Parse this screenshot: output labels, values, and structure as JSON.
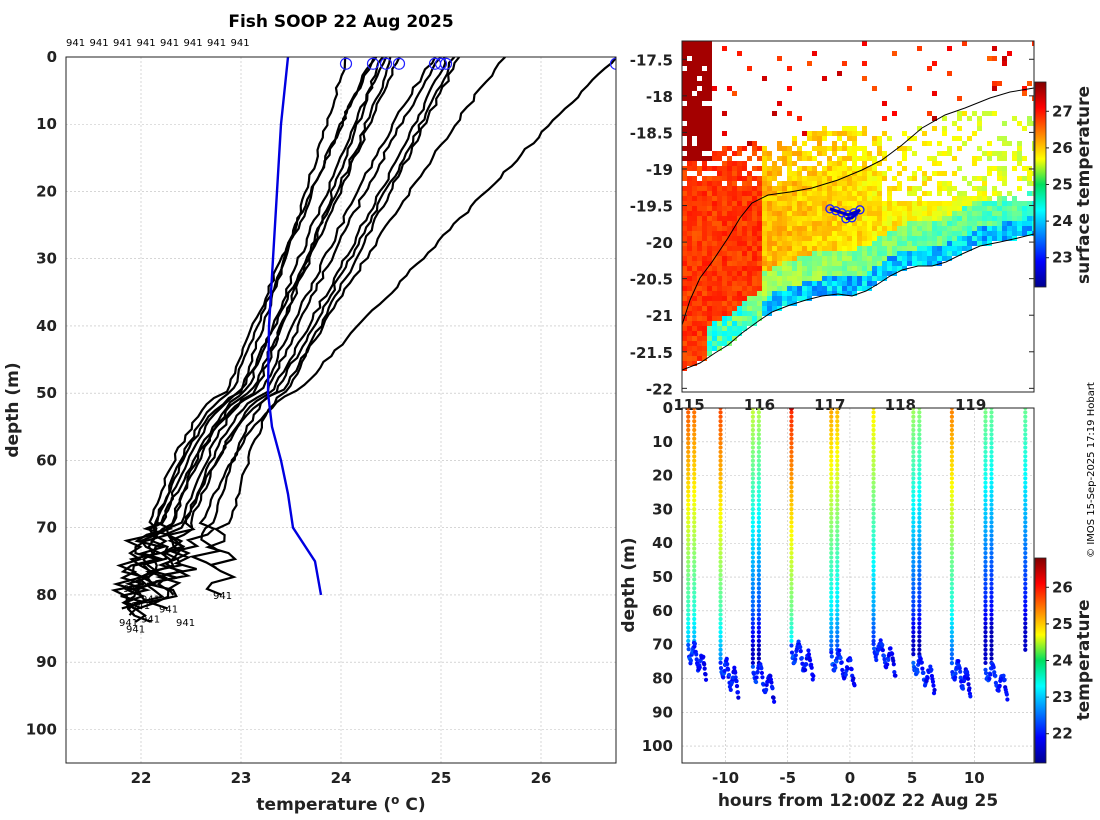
{
  "chart_data": [
    {
      "type": "line",
      "title": "Fish SOOP 22 Aug 2025",
      "xlabel": "temperature (",
      "xlabel_sup": "o",
      "xlabel_tail": " C)",
      "ylabel": "depth (m)",
      "xlim": [
        21.25,
        26.75
      ],
      "ylim": [
        105,
        0
      ],
      "xticks": [
        "22",
        "23",
        "24",
        "25",
        "26"
      ],
      "yticks": [
        "0",
        "10",
        "20",
        "30",
        "40",
        "50",
        "60",
        "70",
        "80",
        "90",
        "100"
      ],
      "top_labels": [
        "941",
        "941",
        "941",
        "941",
        "941",
        "941",
        "941",
        "941"
      ],
      "profile_labels": [
        "941",
        "941",
        "941",
        "941",
        "941",
        "941",
        "941",
        "941",
        "941"
      ],
      "reference_profile": {
        "name": "climatology",
        "color": "#0000e0",
        "depth": [
          0,
          10,
          20,
          30,
          40,
          50,
          55,
          60,
          65,
          70,
          75,
          80
        ],
        "temp": [
          23.47,
          23.4,
          23.36,
          23.32,
          23.28,
          23.27,
          23.31,
          23.4,
          23.47,
          23.52,
          23.74,
          23.8
        ]
      },
      "surface_markers_temp": [
        24.05,
        24.32,
        24.45,
        24.58,
        24.94,
        25.0,
        25.05,
        26.75
      ]
    },
    {
      "type": "heatmap",
      "yticks": [
        "-17.5",
        "-18",
        "-18.5",
        "-19",
        "-19.5",
        "-20",
        "-20.5",
        "-21",
        "-21.5",
        "-22"
      ],
      "xticks": [
        "115",
        "116",
        "117",
        "118",
        "119"
      ],
      "ylim": [
        -22.05,
        -17.25
      ],
      "xlim": [
        114.9,
        119.9
      ],
      "colorbar_label": "surface temperature",
      "colorbar_ticks": [
        "23",
        "24",
        "25",
        "26",
        "27"
      ],
      "colorbar_range": [
        22.2,
        27.8
      ],
      "vessel_position": {
        "lon": 117.2,
        "lat": -19.6
      }
    },
    {
      "type": "scatter",
      "xlabel": "hours from 12:00Z 22 Aug 25",
      "ylabel": "depth (m)",
      "xticks": [
        "-10",
        "-5",
        "0",
        "5",
        "10"
      ],
      "yticks": [
        "0",
        "10",
        "20",
        "30",
        "40",
        "50",
        "60",
        "70",
        "80",
        "90",
        "100"
      ],
      "xlim": [
        -13.5,
        14.8
      ],
      "ylim": [
        105,
        0
      ],
      "colorbar_label": "temperature",
      "colorbar_ticks": [
        "22",
        "23",
        "24",
        "25",
        "26"
      ],
      "colorbar_range": [
        21.2,
        26.8
      ],
      "profile_hours": [
        -13,
        -10.4,
        -7.8,
        -4.7,
        -1.5,
        1.9,
        5.1,
        8.2,
        10.9,
        14.1
      ]
    }
  ],
  "credit": "© IMOS 15-Sep-2025 17:19 Hobart"
}
